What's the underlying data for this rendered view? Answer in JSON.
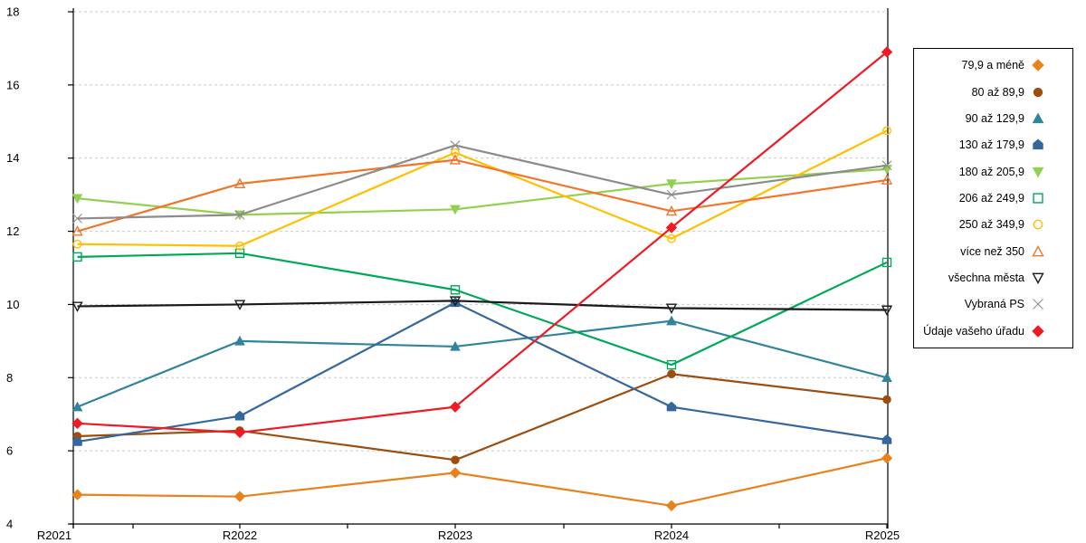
{
  "chart_data": {
    "type": "line",
    "title": "",
    "xlabel": "",
    "ylabel": "",
    "categories": [
      "R2021",
      "R2022",
      "R2023",
      "R2024",
      "R2025"
    ],
    "ylim": [
      4,
      18
    ],
    "yticks": [
      4,
      6,
      8,
      10,
      12,
      14,
      16,
      18
    ],
    "grid": "horizontal-dashed",
    "gridline_color": "#c9c9c9",
    "axis_color": "#000000",
    "legend_position": "right",
    "series": [
      {
        "name": "79,9 a méně",
        "marker": "diamond",
        "marker_fill": "filled",
        "color": "#E8821C",
        "values": [
          4.8,
          4.75,
          5.4,
          4.5,
          5.8
        ]
      },
      {
        "name": "80 až 89,9",
        "marker": "circle",
        "marker_fill": "filled",
        "color": "#9C4E0E",
        "values": [
          6.4,
          6.55,
          5.75,
          8.1,
          7.4
        ]
      },
      {
        "name": "90 až 129,9",
        "marker": "triangle-up",
        "marker_fill": "filled",
        "color": "#31849B",
        "values": [
          7.2,
          9.0,
          8.85,
          9.55,
          8.0
        ]
      },
      {
        "name": "130 až 179,9",
        "marker": "pentagon",
        "marker_fill": "filled",
        "color": "#35679E",
        "values": [
          6.25,
          6.95,
          10.05,
          7.2,
          6.3
        ]
      },
      {
        "name": "180 až 205,9",
        "marker": "triangle-down",
        "marker_fill": "filled",
        "color": "#92D050",
        "values": [
          12.9,
          12.45,
          12.6,
          13.3,
          13.7
        ]
      },
      {
        "name": "206 až 249,9",
        "marker": "square",
        "marker_fill": "open",
        "color": "#00A859",
        "values": [
          11.3,
          11.4,
          10.4,
          8.35,
          11.15
        ]
      },
      {
        "name": "250 až 349,9",
        "marker": "circle",
        "marker_fill": "open",
        "color": "#FFC000",
        "values": [
          11.65,
          11.6,
          14.15,
          11.8,
          14.75
        ]
      },
      {
        "name": "více než 350",
        "marker": "triangle-up",
        "marker_fill": "open",
        "color": "#F0762B",
        "values": [
          12.0,
          13.3,
          13.95,
          12.55,
          13.4
        ]
      },
      {
        "name": "všechna města",
        "marker": "triangle-down",
        "marker_fill": "open",
        "color": "#1A1A1A",
        "values": [
          9.95,
          10.0,
          10.1,
          9.9,
          9.85
        ]
      },
      {
        "name": "Vybraná PS",
        "marker": "x",
        "marker_fill": "open",
        "color": "#8C8C8C",
        "values": [
          12.35,
          12.45,
          14.35,
          13.0,
          13.8
        ]
      },
      {
        "name": "Údaje vašeho úřadu",
        "marker": "diamond",
        "marker_fill": "filled",
        "color": "#ED1C24",
        "values": [
          6.75,
          6.5,
          7.2,
          12.1,
          16.9
        ]
      }
    ]
  }
}
